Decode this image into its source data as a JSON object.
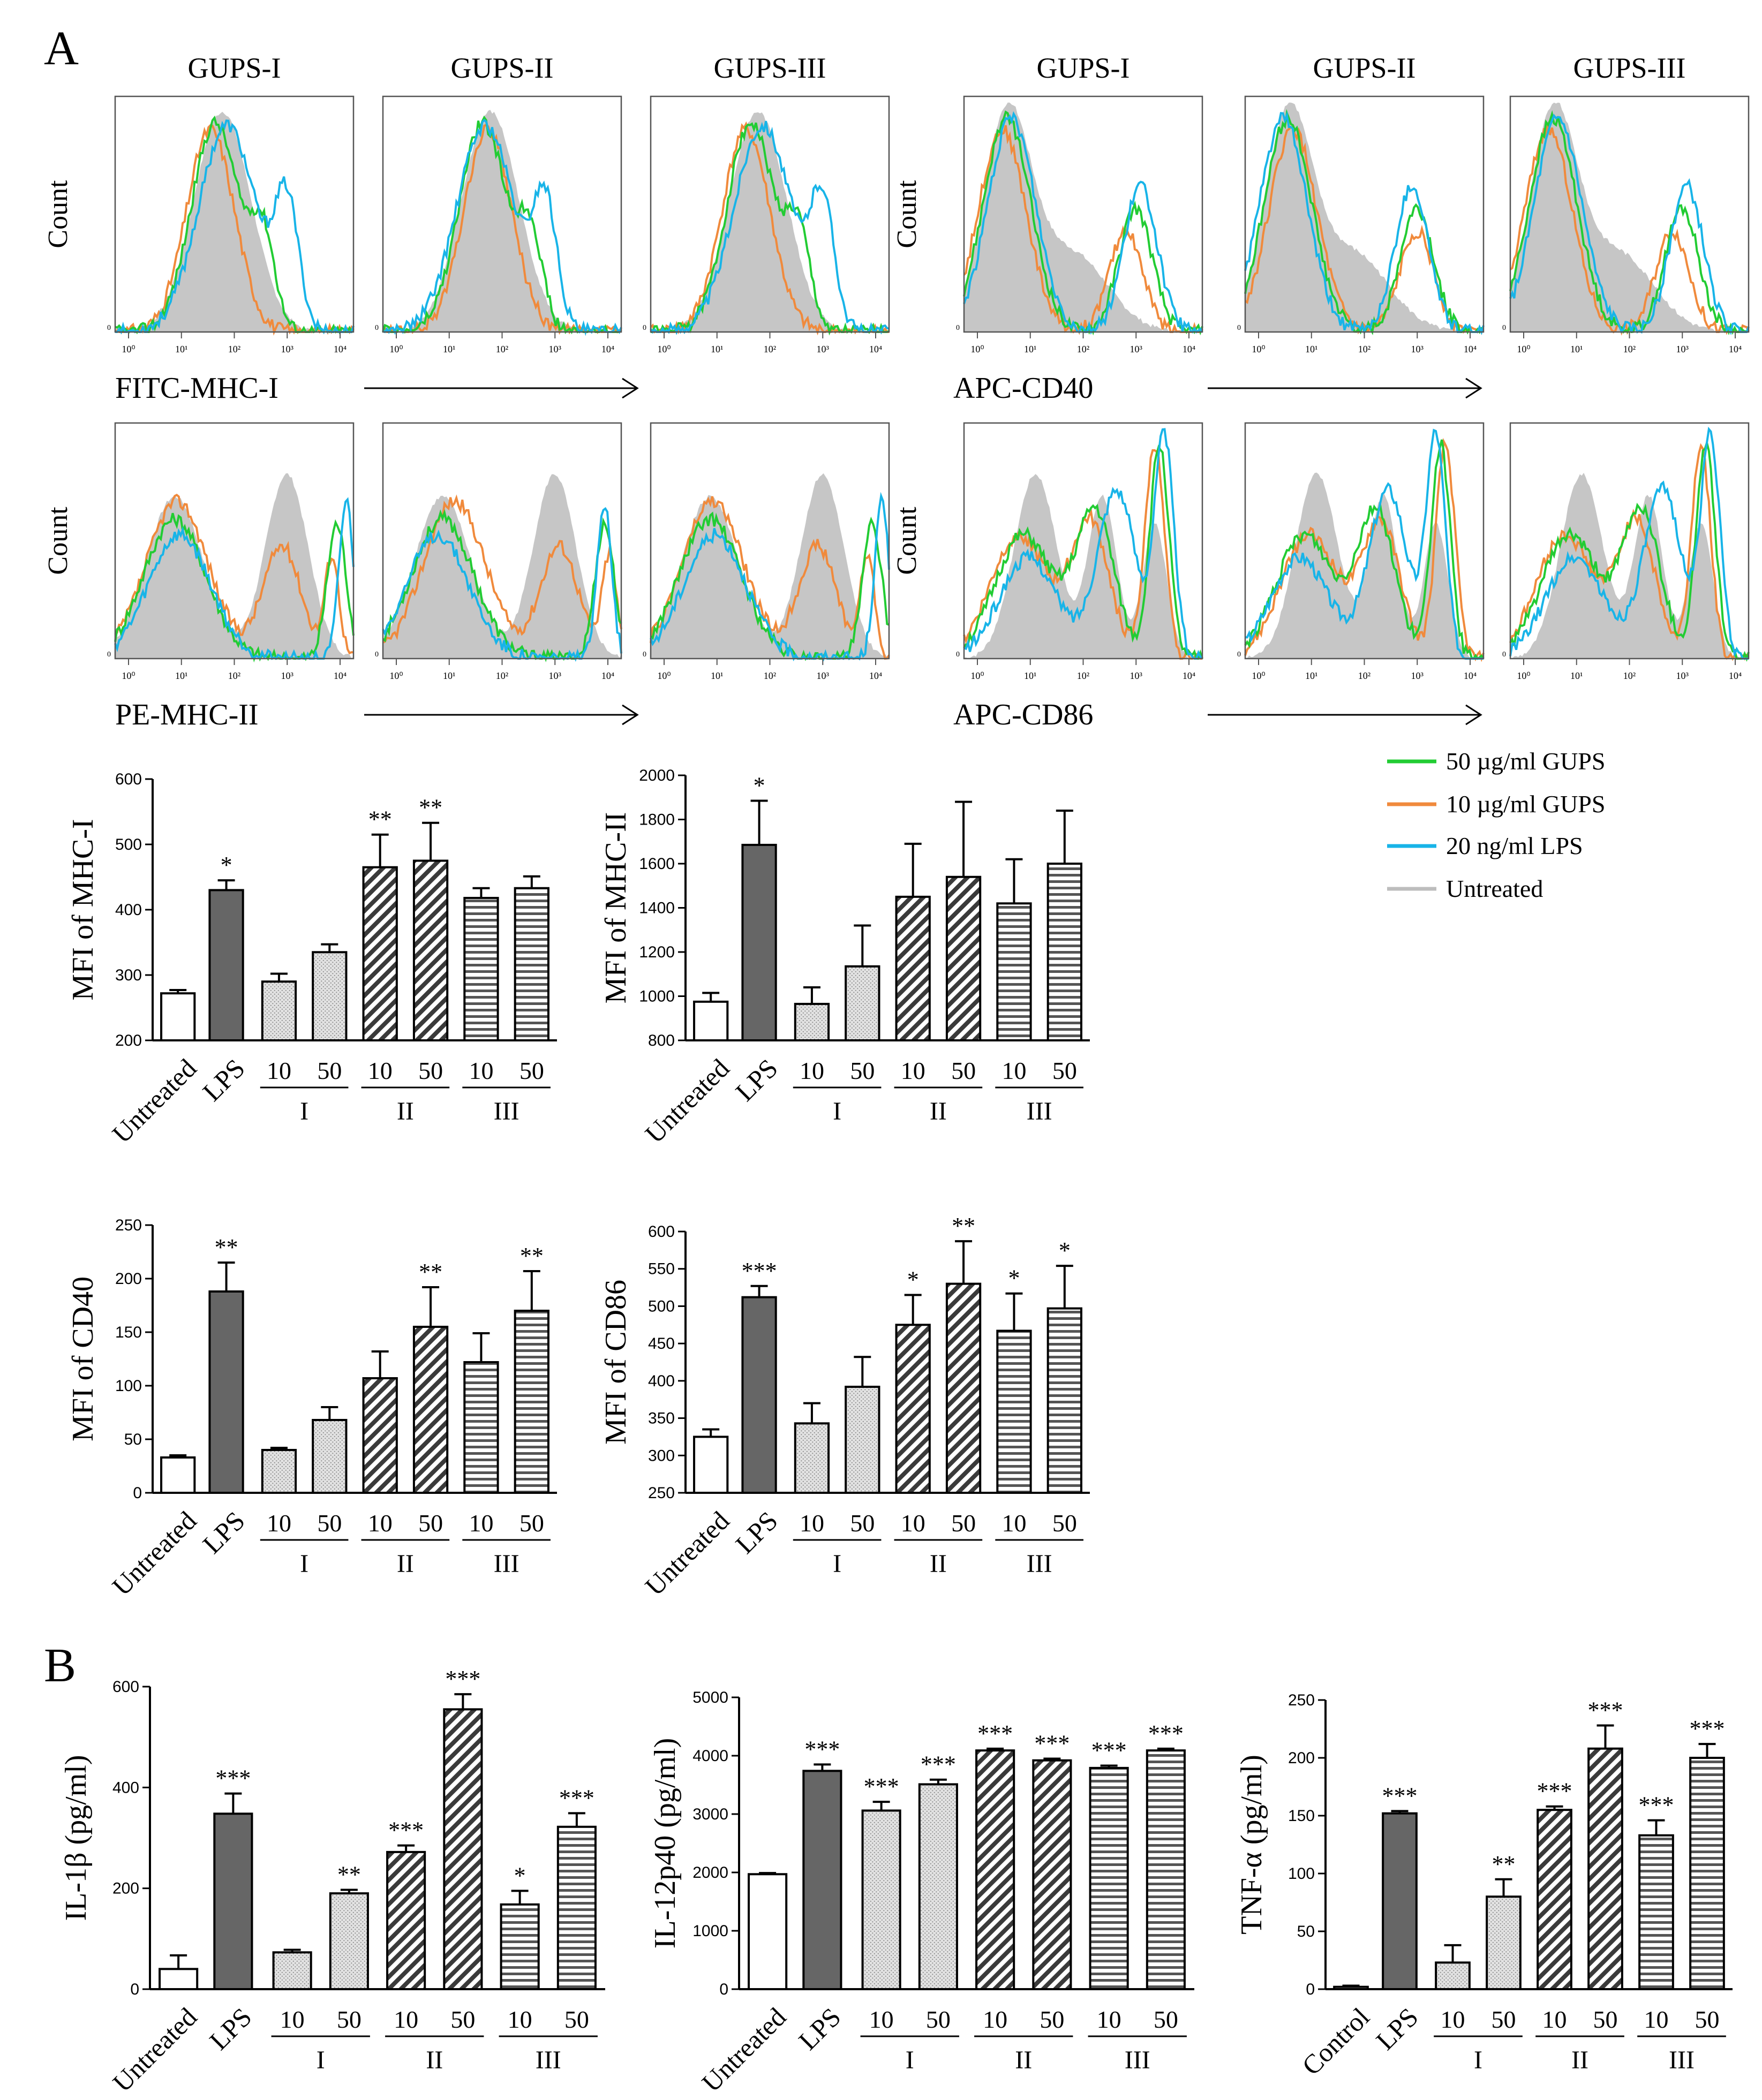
{
  "panel_labels": {
    "a": "A",
    "b": "B"
  },
  "legend": [
    {
      "label": "50 µg/ml GUPS",
      "color": "#22cc33"
    },
    {
      "label": "10 µg/ml GUPS",
      "color": "#f08a3c"
    },
    {
      "label": "20 ng/ml LPS",
      "color": "#18b4e8"
    },
    {
      "label": "Untreated",
      "color": "#bdbdbd"
    }
  ],
  "histogram_panels": {
    "column_titles": [
      "GUPS-I",
      "GUPS-II",
      "GUPS-III"
    ],
    "y_label": "Count",
    "tick_labels": [
      "10⁰",
      "10¹",
      "10²",
      "10³",
      "10⁴"
    ],
    "rows": [
      {
        "marker": "FITC-MHC-I",
        "side": "left"
      },
      {
        "marker": "APC-CD40",
        "side": "right"
      },
      {
        "marker": "PE-MHC-II",
        "side": "left"
      },
      {
        "marker": "APC-CD86",
        "side": "right"
      }
    ]
  },
  "chart_data": [
    {
      "type": "bar",
      "ylabel": "MFI of MHC-I",
      "ylim": [
        200,
        600
      ],
      "yticks": [
        200,
        300,
        400,
        500,
        600
      ],
      "categories": [
        "Untreated",
        "LPS",
        "10",
        "50",
        "10",
        "50",
        "10",
        "50"
      ],
      "groups": [
        "I",
        "II",
        "III"
      ],
      "values": [
        272,
        430,
        290,
        335,
        465,
        475,
        418,
        433
      ],
      "errors": [
        5,
        15,
        12,
        12,
        50,
        58,
        15,
        18
      ],
      "significance": [
        "",
        "*",
        "",
        "",
        "**",
        "**",
        "",
        ""
      ]
    },
    {
      "type": "bar",
      "ylabel": "MFI of MHC-II",
      "ylim": [
        800,
        2000
      ],
      "yticks": [
        800,
        1000,
        1200,
        1400,
        1600,
        1800,
        2000
      ],
      "categories": [
        "Untreated",
        "LPS",
        "10",
        "50",
        "10",
        "50",
        "10",
        "50"
      ],
      "groups": [
        "I",
        "II",
        "III"
      ],
      "values": [
        975,
        1685,
        965,
        1135,
        1450,
        1540,
        1420,
        1600
      ],
      "errors": [
        40,
        200,
        75,
        185,
        240,
        340,
        200,
        240
      ],
      "significance": [
        "",
        "*",
        "",
        "",
        "",
        "",
        "",
        ""
      ]
    },
    {
      "type": "bar",
      "ylabel": "MFI of  CD40",
      "ylim": [
        0,
        250
      ],
      "yticks": [
        0,
        50,
        100,
        150,
        200,
        250
      ],
      "categories": [
        "Untreated",
        "LPS",
        "10",
        "50",
        "10",
        "50",
        "10",
        "50"
      ],
      "groups": [
        "I",
        "II",
        "III"
      ],
      "values": [
        33,
        188,
        40,
        68,
        107,
        155,
        122,
        170
      ],
      "errors": [
        2,
        27,
        2,
        12,
        25,
        37,
        27,
        37
      ],
      "significance": [
        "",
        "**",
        "",
        "",
        "",
        "**",
        "",
        "**"
      ]
    },
    {
      "type": "bar",
      "ylabel": "MFI of  CD86",
      "ylim": [
        250,
        600
      ],
      "yticks": [
        250,
        300,
        350,
        400,
        450,
        500,
        550,
        600
      ],
      "categories": [
        "Untreated",
        "LPS",
        "10",
        "50",
        "10",
        "50",
        "10",
        "50"
      ],
      "groups": [
        "I",
        "II",
        "III"
      ],
      "values": [
        325,
        512,
        343,
        392,
        475,
        530,
        467,
        497
      ],
      "errors": [
        10,
        15,
        27,
        40,
        40,
        57,
        50,
        57
      ],
      "significance": [
        "",
        "***",
        "",
        "",
        "*",
        "**",
        "*",
        "*"
      ]
    },
    {
      "type": "bar",
      "ylabel": "IL-1β (pg/ml)",
      "ylim": [
        0,
        600
      ],
      "yticks": [
        0,
        200,
        400,
        600
      ],
      "categories": [
        "Untreated",
        "LPS",
        "10",
        "50",
        "10",
        "50",
        "10",
        "50"
      ],
      "groups": [
        "I",
        "II",
        "III"
      ],
      "values": [
        40,
        348,
        73,
        190,
        272,
        555,
        168,
        322
      ],
      "errors": [
        27,
        40,
        5,
        7,
        13,
        30,
        27,
        27
      ],
      "significance": [
        "",
        "***",
        "",
        "**",
        "***",
        "***",
        "*",
        "***"
      ]
    },
    {
      "type": "bar",
      "ylabel": "IL-12p40 (pg/ml)",
      "ylim": [
        0,
        5000
      ],
      "yticks": [
        0,
        1000,
        2000,
        3000,
        4000,
        5000
      ],
      "categories": [
        "Untreated",
        "LPS",
        "10",
        "50",
        "10",
        "50",
        "10",
        "50"
      ],
      "groups": [
        "I",
        "II",
        "III"
      ],
      "values": [
        1970,
        3740,
        3060,
        3510,
        4090,
        3920,
        3790,
        4090
      ],
      "errors": [
        20,
        110,
        150,
        80,
        30,
        30,
        40,
        30
      ],
      "significance": [
        "",
        "***",
        "***",
        "***",
        "***",
        "***",
        "***",
        "***"
      ]
    },
    {
      "type": "bar",
      "ylabel": "TNF-α (pg/ml)",
      "ylim": [
        0,
        250
      ],
      "yticks": [
        0,
        50,
        100,
        150,
        200,
        250
      ],
      "categories": [
        "Control",
        "LPS",
        "10",
        "50",
        "10",
        "50",
        "10",
        "50"
      ],
      "groups": [
        "I",
        "II",
        "III"
      ],
      "values": [
        2,
        152,
        23,
        80,
        155,
        208,
        133,
        200
      ],
      "errors": [
        1,
        2,
        15,
        15,
        3,
        20,
        13,
        12
      ],
      "significance": [
        "",
        "***",
        "",
        "**",
        "***",
        "***",
        "***",
        "***"
      ]
    }
  ]
}
